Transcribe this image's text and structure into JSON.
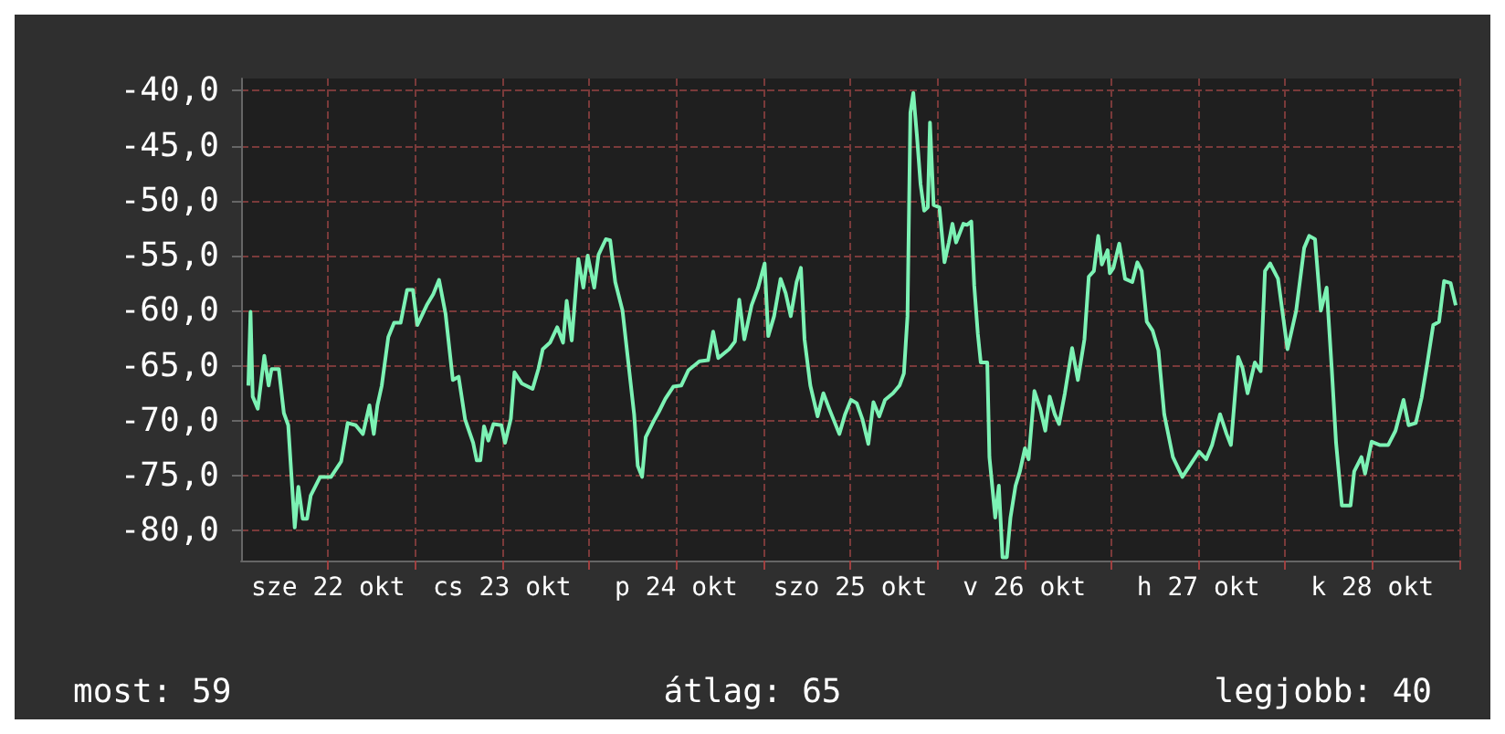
{
  "chart_data": {
    "type": "line",
    "x": [
      "--10-22T01:00",
      "--10-22T01:18",
      "--10-22T01:36",
      "--10-22T02:18",
      "--10-22T03:12",
      "--10-22T03:48",
      "--10-22T04:12",
      "--10-22T05:12",
      "--10-22T05:54",
      "--10-22T06:30",
      "--10-22T07:24",
      "--10-22T07:54",
      "--10-22T08:30",
      "--10-22T09:06",
      "--10-22T09:36",
      "--10-22T10:54",
      "--10-22T12:24",
      "--10-22T13:48",
      "--10-22T14:42",
      "--10-22T15:48",
      "--10-22T16:48",
      "--10-22T17:42",
      "--10-22T18:18",
      "--10-22T18:48",
      "--10-22T19:24",
      "--10-22T20:18",
      "--10-22T21:06",
      "--10-22T22:00",
      "--10-22T22:54",
      "--10-22T23:42",
      "--10-23T00:18",
      "--10-23T01:36",
      "--10-23T02:30",
      "--10-23T03:18",
      "--10-23T04:12",
      "--10-23T05:12",
      "--10-23T06:00",
      "--10-23T06:54",
      "--10-23T08:00",
      "--10-23T08:30",
      "--10-23T09:00",
      "--10-23T09:30",
      "--10-23T10:06",
      "--10-23T10:48",
      "--10-23T11:54",
      "--10-23T12:24",
      "--10-23T13:12",
      "--10-23T13:42",
      "--10-23T14:42",
      "--10-23T16:12",
      "--10-23T17:00",
      "--10-23T17:36",
      "--10-23T18:36",
      "--10-23T19:36",
      "--10-23T20:24",
      "--10-23T20:54",
      "--10-23T21:36",
      "--10-23T22:30",
      "--10-23T23:12",
      "--10-23T23:48",
      "--10-24T00:42",
      "--10-24T01:18",
      "--10-24T02:18",
      "--10-24T02:54",
      "--10-24T03:36",
      "--10-24T04:36",
      "--10-24T05:24",
      "--10-24T06:12",
      "--10-24T06:42",
      "--10-24T07:18",
      "--10-24T07:48",
      "--10-24T09:00",
      "--10-24T09:36",
      "--10-24T10:30",
      "--10-24T11:36",
      "--10-24T12:42",
      "--10-24T13:42",
      "--10-24T15:12",
      "--10-24T16:24",
      "--10-24T17:06",
      "--10-24T17:48",
      "--10-24T19:18",
      "--10-24T20:06",
      "--10-24T20:42",
      "--10-24T21:24",
      "--10-24T22:24",
      "--10-24T23:18",
      "--10-25T00:12",
      "--10-25T00:42",
      "--10-25T01:30",
      "--10-25T02:24",
      "--10-25T03:06",
      "--10-25T03:48",
      "--10-25T04:36",
      "--10-25T05:12",
      "--10-25T05:42",
      "--10-25T06:30",
      "--10-25T07:30",
      "--10-25T08:18",
      "--10-25T09:06",
      "--10-25T10:30",
      "--10-25T11:18",
      "--10-25T12:06",
      "--10-25T12:54",
      "--10-25T13:42",
      "--10-25T14:30",
      "--10-25T15:12",
      "--10-25T16:00",
      "--10-25T16:48",
      "--10-25T17:54",
      "--10-25T18:48",
      "--10-25T19:24",
      "--10-25T19:54",
      "--10-25T20:18",
      "--10-25T20:42",
      "--10-25T21:12",
      "--10-25T21:42",
      "--10-25T22:12",
      "--10-25T22:42",
      "--10-25T23:00",
      "--10-25T23:30",
      "--10-26T00:18",
      "--10-26T01:00",
      "--10-26T01:36",
      "--10-26T02:06",
      "--10-26T02:36",
      "--10-26T03:36",
      "--10-26T04:06",
      "--10-26T04:42",
      "--10-26T05:06",
      "--10-26T05:36",
      "--10-26T06:00",
      "--10-26T06:54",
      "--10-26T07:12",
      "--10-26T08:00",
      "--10-26T08:30",
      "--10-26T09:00",
      "--10-26T09:36",
      "--10-26T10:06",
      "--10-26T10:48",
      "--10-26T11:24",
      "--10-26T12:06",
      "--10-26T12:36",
      "--10-26T13:24",
      "--10-26T14:12",
      "--10-26T14:54",
      "--10-26T15:30",
      "--10-26T16:12",
      "--10-26T16:48",
      "--10-26T17:36",
      "--10-26T18:36",
      "--10-26T19:24",
      "--10-26T20:18",
      "--10-26T20:54",
      "--10-26T21:36",
      "--10-26T22:12",
      "--10-26T22:42",
      "--10-26T23:30",
      "--10-26T23:48",
      "--10-27T00:18",
      "--10-27T01:06",
      "--10-27T01:54",
      "--10-27T02:54",
      "--10-27T03:36",
      "--10-27T04:12",
      "--10-27T04:54",
      "--10-27T05:42",
      "--10-27T06:30",
      "--10-27T07:18",
      "--10-27T08:30",
      "--10-27T09:48",
      "--10-27T10:54",
      "--10-27T12:06",
      "--10-27T13:06",
      "--10-27T13:54",
      "--10-27T15:00",
      "--10-27T15:54",
      "--10-27T16:30",
      "--10-27T17:30",
      "--10-27T18:06",
      "--10-27T18:48",
      "--10-27T19:48",
      "--10-27T20:36",
      "--10-27T21:12",
      "--10-27T21:54",
      "--10-27T23:00",
      "--10-28T00:18",
      "--10-28T01:30",
      "--10-28T02:36",
      "--10-28T03:18",
      "--10-28T04:06",
      "--10-28T04:54",
      "--10-28T05:42",
      "--10-28T06:24",
      "--10-28T07:00",
      "--10-28T07:48",
      "--10-28T09:00",
      "--10-28T09:30",
      "--10-28T10:30",
      "--10-28T11:00",
      "--10-28T11:54",
      "--10-28T13:00",
      "--10-28T14:12",
      "--10-28T15:12",
      "--10-28T16:18",
      "--10-28T17:00",
      "--10-28T18:00",
      "--10-28T18:48",
      "--10-28T19:36",
      "--10-28T20:24",
      "--10-28T21:12",
      "--10-28T21:54",
      "--10-28T22:48",
      "--10-28T23:30"
    ],
    "series": [
      {
        "color": "#7cf2b4",
        "values": [
          -66.8,
          -60.1,
          -67.8,
          -68.9,
          -64.1,
          -66.8,
          -65.3,
          -65.3,
          -69.3,
          -70.4,
          -79.7,
          -76.0,
          -78.9,
          -78.9,
          -76.8,
          -75.1,
          -75.1,
          -73.7,
          -70.2,
          -70.4,
          -71.2,
          -68.6,
          -71.2,
          -68.6,
          -66.8,
          -62.4,
          -61.1,
          -61.1,
          -58.1,
          -58.1,
          -61.3,
          -59.5,
          -58.5,
          -57.2,
          -60.3,
          -66.3,
          -66.0,
          -69.9,
          -72.0,
          -73.6,
          -73.6,
          -70.5,
          -71.8,
          -70.3,
          -70.4,
          -72.0,
          -69.8,
          -65.6,
          -66.6,
          -67.1,
          -65.3,
          -63.5,
          -62.9,
          -61.5,
          -62.9,
          -59.1,
          -62.7,
          -55.3,
          -57.9,
          -55.0,
          -57.9,
          -54.9,
          -53.5,
          -53.6,
          -57.4,
          -60.0,
          -64.7,
          -69.4,
          -74.1,
          -75.1,
          -71.5,
          -69.9,
          -69.2,
          -68.0,
          -66.9,
          -66.8,
          -65.4,
          -64.6,
          -64.5,
          -61.9,
          -64.3,
          -63.5,
          -62.8,
          -59.0,
          -62.6,
          -59.5,
          -57.9,
          -55.7,
          -62.3,
          -60.5,
          -57.1,
          -58.4,
          -60.5,
          -57.4,
          -56.1,
          -62.6,
          -66.8,
          -69.6,
          -67.5,
          -68.9,
          -71.2,
          -69.4,
          -68.1,
          -68.4,
          -69.9,
          -72.1,
          -68.3,
          -69.6,
          -68.1,
          -67.5,
          -66.8,
          -65.7,
          -60.5,
          -42.0,
          -40.2,
          -44.1,
          -48.5,
          -50.9,
          -50.6,
          -42.9,
          -50.4,
          -50.6,
          -55.6,
          -53.8,
          -52.1,
          -53.8,
          -52.1,
          -52.2,
          -51.9,
          -57.7,
          -62.1,
          -64.7,
          -64.7,
          -73.3,
          -78.8,
          -75.9,
          -82.4,
          -82.4,
          -78.8,
          -75.9,
          -74.6,
          -72.5,
          -73.5,
          -67.3,
          -68.9,
          -70.9,
          -67.8,
          -69.4,
          -70.3,
          -67.5,
          -63.4,
          -66.3,
          -62.6,
          -56.9,
          -56.4,
          -53.2,
          -55.8,
          -54.5,
          -56.6,
          -56.1,
          -53.9,
          -57.1,
          -57.4,
          -55.6,
          -56.4,
          -61.0,
          -61.8,
          -63.6,
          -69.4,
          -73.3,
          -75.1,
          -74.0,
          -72.8,
          -73.5,
          -72.2,
          -69.4,
          -71.2,
          -72.2,
          -64.2,
          -65.2,
          -67.5,
          -64.7,
          -65.5,
          -56.4,
          -55.7,
          -57.1,
          -63.5,
          -60.0,
          -54.3,
          -53.2,
          -53.5,
          -60.0,
          -57.9,
          -65.2,
          -72.0,
          -77.7,
          -77.7,
          -74.6,
          -73.3,
          -74.8,
          -71.9,
          -72.2,
          -72.2,
          -70.9,
          -68.1,
          -70.4,
          -70.2,
          -67.9,
          -64.7,
          -61.3,
          -61.0,
          -57.3,
          -57.5,
          -59.5
        ]
      }
    ],
    "xlim": [
      "--10-22T00:00",
      "--10-29T00:00"
    ],
    "xticks": [
      {
        "value": "--10-22T12:00",
        "label": "sze 22 okt"
      },
      {
        "value": "--10-23T00:00",
        "label": null
      },
      {
        "value": "--10-23T12:00",
        "label": "cs 23 okt"
      },
      {
        "value": "--10-24T00:00",
        "label": null
      },
      {
        "value": "--10-24T12:00",
        "label": "p 24 okt"
      },
      {
        "value": "--10-25T00:00",
        "label": null
      },
      {
        "value": "--10-25T12:00",
        "label": "szo 25 okt"
      },
      {
        "value": "--10-26T00:00",
        "label": null
      },
      {
        "value": "--10-26T12:00",
        "label": "v 26 okt"
      },
      {
        "value": "--10-27T00:00",
        "label": null
      },
      {
        "value": "--10-27T12:00",
        "label": "h 27 okt"
      },
      {
        "value": "--10-28T00:00",
        "label": null
      },
      {
        "value": "--10-28T12:00",
        "label": "k 28 okt"
      },
      {
        "value": "--10-29T00:00",
        "label": null
      }
    ],
    "ylim": [
      -82.7,
      -38.9
    ],
    "yticks": [
      {
        "value": -80,
        "label": "-80,0"
      },
      {
        "value": -75,
        "label": "-75,0"
      },
      {
        "value": -70,
        "label": "-70,0"
      },
      {
        "value": -65,
        "label": "-65,0"
      },
      {
        "value": -60,
        "label": "-60,0"
      },
      {
        "value": -55,
        "label": "-55,0"
      },
      {
        "value": -50,
        "label": "-50,0"
      },
      {
        "value": -45,
        "label": "-45,0"
      },
      {
        "value": -40,
        "label": "-40,0"
      }
    ],
    "grid": true,
    "annotations": [
      "most: 59",
      "átlag: 65",
      "legjobb: 40"
    ]
  }
}
